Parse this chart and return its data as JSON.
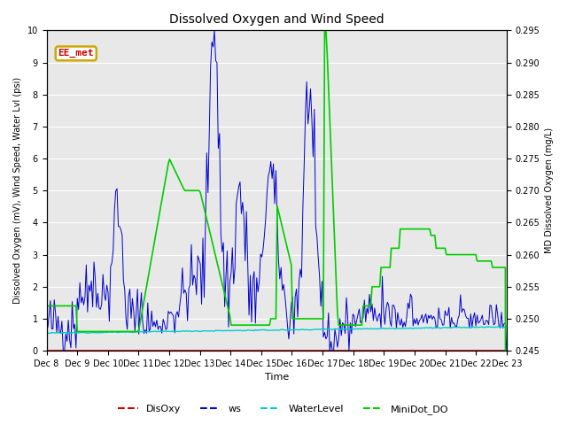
{
  "title": "Dissolved Oxygen and Wind Speed",
  "xlabel": "Time",
  "ylabel_left": "Dissolved Oxygen (mV), Wind Speed, Water Lvl (psi)",
  "ylabel_right": "MD Dissolved Oxygen (mg/L)",
  "ylim_left": [
    0.0,
    10.0
  ],
  "ylim_right": [
    0.245,
    0.295
  ],
  "annotation_text": "EE_met",
  "annotation_box_color": "#ccaa00",
  "annotation_text_color": "#cc0000",
  "colors": {
    "DisOxy": "#cc0000",
    "ws": "#0000cc",
    "WaterLevel": "#00cccc",
    "MiniDot_DO": "#00cc00"
  },
  "bg_color": "#e8e8e8",
  "xtick_labels": [
    "Dec 8",
    "Dec 9",
    "Dec 10",
    "Dec 11",
    "Dec 12",
    "Dec 13",
    "Dec 14",
    "Dec 15",
    "Dec 16",
    "Dec 17",
    "Dec 18",
    "Dec 19",
    "Dec 20",
    "Dec 21",
    "Dec 22",
    "Dec 23"
  ],
  "legend_labels": [
    "DisOxy",
    "ws",
    "WaterLevel",
    "MiniDot_DO"
  ]
}
